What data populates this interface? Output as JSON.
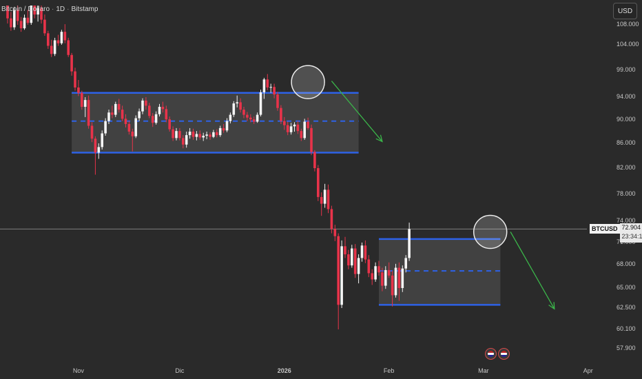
{
  "header": {
    "symbol_name": "Bitcoin / Dollaro",
    "interval": "1D",
    "exchange": "Bitstamp",
    "currency_button": "USD"
  },
  "price_tag": {
    "symbol": "BTCUSD",
    "last_price": "72.904",
    "countdown": "23:34:11"
  },
  "chart_data": {
    "type": "candlestick",
    "ylim": [
      56000,
      111000
    ],
    "y_ticks": [
      {
        "value": 108000,
        "label": "108.000"
      },
      {
        "value": 104000,
        "label": "104.000"
      },
      {
        "value": 99000,
        "label": "99.000"
      },
      {
        "value": 94000,
        "label": "94.000"
      },
      {
        "value": 90000,
        "label": "90.000"
      },
      {
        "value": 86000,
        "label": "86.000"
      },
      {
        "value": 82000,
        "label": "82.000"
      },
      {
        "value": 78000,
        "label": "78.000"
      },
      {
        "value": 74000,
        "label": "74.000"
      },
      {
        "value": 71000,
        "label": "71.000"
      },
      {
        "value": 68000,
        "label": "68.000"
      },
      {
        "value": 65000,
        "label": "65.000"
      },
      {
        "value": 62500,
        "label": "62.500"
      },
      {
        "value": 60100,
        "label": "60.100"
      },
      {
        "value": 57900,
        "label": "57.900"
      }
    ],
    "x_ticks": [
      {
        "index": 11,
        "label": "Nov"
      },
      {
        "index": 41,
        "label": "Dic"
      },
      {
        "index": 72,
        "label": "2026"
      },
      {
        "index": 103,
        "label": "Feb"
      },
      {
        "index": 131,
        "label": "Mar"
      },
      {
        "index": 162,
        "label": "Apr"
      }
    ],
    "start_index": -10,
    "candles": [
      [
        111200,
        111500,
        108200,
        109000
      ],
      [
        109000,
        110000,
        106800,
        107500
      ],
      [
        107500,
        110800,
        107000,
        110300
      ],
      [
        110300,
        111200,
        108000,
        108600
      ],
      [
        108600,
        109200,
        106600,
        107300
      ],
      [
        107300,
        109600,
        107000,
        109100
      ],
      [
        109100,
        110300,
        108000,
        108300
      ],
      [
        108300,
        111500,
        108000,
        111000
      ],
      [
        111000,
        111700,
        109000,
        109600
      ],
      [
        109600,
        111000,
        108500,
        110600
      ],
      [
        110600,
        111200,
        108200,
        108800
      ],
      [
        108800,
        109600,
        105800,
        106300
      ],
      [
        106300,
        106800,
        103200,
        103800
      ],
      [
        103800,
        105000,
        101600,
        102200
      ],
      [
        102200,
        105400,
        101800,
        104900
      ],
      [
        104900,
        106000,
        103800,
        104300
      ],
      [
        104300,
        107000,
        104000,
        106600
      ],
      [
        106600,
        108100,
        104300,
        104900
      ],
      [
        104900,
        105400,
        101600,
        102000
      ],
      [
        102000,
        102400,
        98000,
        98800
      ],
      [
        98800,
        99500,
        95200,
        95800
      ],
      [
        95800,
        97200,
        94200,
        94800
      ],
      [
        94800,
        95200,
        91800,
        92300
      ],
      [
        92300,
        94000,
        90500,
        93500
      ],
      [
        93500,
        94300,
        88500,
        89000
      ],
      [
        89000,
        89600,
        86200,
        86800
      ],
      [
        86800,
        87200,
        81000,
        84500
      ],
      [
        84500,
        86000,
        83500,
        85400
      ],
      [
        85400,
        88200,
        85000,
        87700
      ],
      [
        87700,
        90300,
        87300,
        89800
      ],
      [
        89800,
        91800,
        89300,
        91300
      ],
      [
        91300,
        92500,
        90300,
        90900
      ],
      [
        90900,
        93200,
        90500,
        92800
      ],
      [
        92800,
        93700,
        91300,
        91800
      ],
      [
        91800,
        92500,
        89800,
        90200
      ],
      [
        90200,
        91000,
        88700,
        89300
      ],
      [
        89300,
        89800,
        87500,
        88000
      ],
      [
        88000,
        88500,
        84700,
        87200
      ],
      [
        87200,
        90800,
        86900,
        90300
      ],
      [
        90300,
        92000,
        89800,
        91500
      ],
      [
        91500,
        93800,
        91000,
        93400
      ],
      [
        93400,
        94000,
        91800,
        92500
      ],
      [
        92500,
        93000,
        90300,
        90700
      ],
      [
        90700,
        91200,
        88800,
        89500
      ],
      [
        89500,
        91500,
        89200,
        91000
      ],
      [
        91000,
        92800,
        90600,
        92300
      ],
      [
        92300,
        93200,
        91300,
        91900
      ],
      [
        91900,
        92500,
        89600,
        90100
      ],
      [
        90100,
        90600,
        88000,
        88400
      ],
      [
        88400,
        88900,
        86400,
        86900
      ],
      [
        86900,
        88600,
        86500,
        88100
      ],
      [
        88100,
        88600,
        86500,
        86900
      ],
      [
        86900,
        87400,
        85200,
        85800
      ],
      [
        85800,
        88000,
        85300,
        87400
      ],
      [
        87400,
        88600,
        86800,
        88000
      ],
      [
        88000,
        88500,
        86600,
        87100
      ],
      [
        87100,
        88100,
        86500,
        87600
      ],
      [
        87600,
        88200,
        86600,
        87000
      ],
      [
        87000,
        87800,
        86400,
        87300
      ],
      [
        87300,
        88000,
        86700,
        87500
      ],
      [
        87500,
        87900,
        86600,
        87100
      ],
      [
        87100,
        88300,
        86900,
        87900
      ],
      [
        87900,
        88400,
        87000,
        87400
      ],
      [
        87400,
        89000,
        87100,
        88600
      ],
      [
        88600,
        89300,
        87800,
        88200
      ],
      [
        88200,
        90300,
        87900,
        89800
      ],
      [
        89800,
        91300,
        89400,
        90900
      ],
      [
        90900,
        93300,
        90500,
        92900
      ],
      [
        92900,
        94300,
        92200,
        93100
      ],
      [
        93100,
        93800,
        91300,
        91800
      ],
      [
        91800,
        92300,
        90300,
        90900
      ],
      [
        90900,
        91400,
        89800,
        90400
      ],
      [
        90400,
        91000,
        89600,
        90100
      ],
      [
        90100,
        90600,
        89300,
        89700
      ],
      [
        89700,
        91300,
        89500,
        90900
      ],
      [
        90900,
        95400,
        90600,
        94900
      ],
      [
        94900,
        97600,
        93700,
        97300
      ],
      [
        97300,
        98300,
        95300,
        95800
      ],
      [
        95800,
        96500,
        94800,
        95900
      ],
      [
        95900,
        96500,
        93800,
        94500
      ],
      [
        94500,
        95000,
        91600,
        92100
      ],
      [
        92100,
        92600,
        89300,
        89800
      ],
      [
        89800,
        90500,
        88300,
        89100
      ],
      [
        89100,
        89700,
        87400,
        87900
      ],
      [
        87900,
        89500,
        87500,
        88900
      ],
      [
        88900,
        89600,
        88000,
        89200
      ],
      [
        89200,
        89800,
        87600,
        88100
      ],
      [
        88100,
        88500,
        86400,
        86900
      ],
      [
        86900,
        90200,
        86600,
        89700
      ],
      [
        89700,
        90400,
        88300,
        88600
      ],
      [
        88600,
        89200,
        84100,
        84600
      ],
      [
        84600,
        84900,
        81500,
        82000
      ],
      [
        82000,
        82500,
        77000,
        77600
      ],
      [
        77600,
        78300,
        74800,
        76600
      ],
      [
        76600,
        79600,
        76000,
        78700
      ],
      [
        78700,
        79500,
        75200,
        75800
      ],
      [
        75800,
        76300,
        72300,
        72900
      ],
      [
        72900,
        73500,
        71200,
        71900
      ],
      [
        71900,
        72300,
        60100,
        62900
      ],
      [
        62900,
        71300,
        62500,
        70500
      ],
      [
        70500,
        71800,
        68900,
        69400
      ],
      [
        69400,
        70000,
        67400,
        67900
      ],
      [
        67900,
        70700,
        67600,
        70200
      ],
      [
        70200,
        70800,
        66300,
        66800
      ],
      [
        66800,
        69400,
        65600,
        68900
      ],
      [
        68900,
        71000,
        68400,
        70600
      ],
      [
        70600,
        71300,
        68200,
        68700
      ],
      [
        68700,
        69300,
        66400,
        66900
      ],
      [
        66900,
        67400,
        65400,
        66100
      ],
      [
        66100,
        68300,
        65800,
        67800
      ],
      [
        67800,
        68500,
        66600,
        67000
      ],
      [
        67000,
        67600,
        64600,
        65300
      ],
      [
        65300,
        67800,
        64900,
        67300
      ],
      [
        67300,
        68300,
        66300,
        66600
      ],
      [
        66600,
        67200,
        62700,
        64100
      ],
      [
        64100,
        68100,
        63800,
        67600
      ],
      [
        67600,
        68300,
        63400,
        65000
      ],
      [
        65000,
        67900,
        64500,
        67500
      ],
      [
        67500,
        69300,
        67000,
        68900
      ],
      [
        68900,
        73800,
        68500,
        72904
      ]
    ],
    "ranges": [
      {
        "top": 94800,
        "bottom": 84500,
        "mid": 89800,
        "start_index": 9,
        "end_index": 94
      },
      {
        "top": 71500,
        "bottom": 62900,
        "mid": 67200,
        "start_index": 100,
        "end_index": 136
      }
    ],
    "circles": [
      {
        "index": 79,
        "value": 96800
      },
      {
        "index": 133,
        "value": 72500
      }
    ],
    "arrows": [
      {
        "from_index": 86,
        "from_value": 97000,
        "to_index": 101,
        "to_value": 86300
      },
      {
        "from_index": 139,
        "from_value": 72500,
        "to_index": 152,
        "to_value": 62400
      }
    ],
    "last_price_value": 72904,
    "event_marker_indexes": [
      133,
      137
    ]
  }
}
